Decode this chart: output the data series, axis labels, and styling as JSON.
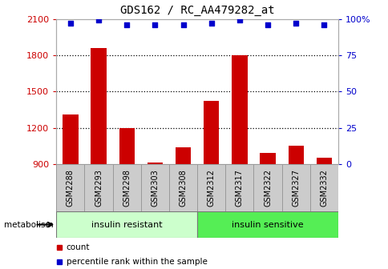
{
  "title": "GDS162 / RC_AA479282_at",
  "samples": [
    "GSM2288",
    "GSM2293",
    "GSM2298",
    "GSM2303",
    "GSM2308",
    "GSM2312",
    "GSM2317",
    "GSM2322",
    "GSM2327",
    "GSM2332"
  ],
  "counts": [
    1310,
    1860,
    1200,
    910,
    1040,
    1420,
    1800,
    990,
    1050,
    950
  ],
  "percentile_ranks": [
    97,
    99,
    96,
    96,
    96,
    97,
    99,
    96,
    97,
    96
  ],
  "ylim": [
    900,
    2100
  ],
  "yticks": [
    900,
    1200,
    1500,
    1800,
    2100
  ],
  "right_yticks": [
    0,
    25,
    50,
    75,
    100
  ],
  "right_ylim": [
    0,
    100
  ],
  "bar_color": "#cc0000",
  "dot_color": "#0000cc",
  "group1_label": "insulin resistant",
  "group2_label": "insulin sensitive",
  "group1_color": "#ccffcc",
  "group2_color": "#55ee55",
  "group_label_prefix": "metabolism",
  "legend_count_label": "count",
  "legend_pct_label": "percentile rank within the sample",
  "n_group1": 5,
  "n_group2": 5,
  "plot_bg": "#ffffff",
  "label_box_color": "#cccccc",
  "label_box_edge": "#999999"
}
